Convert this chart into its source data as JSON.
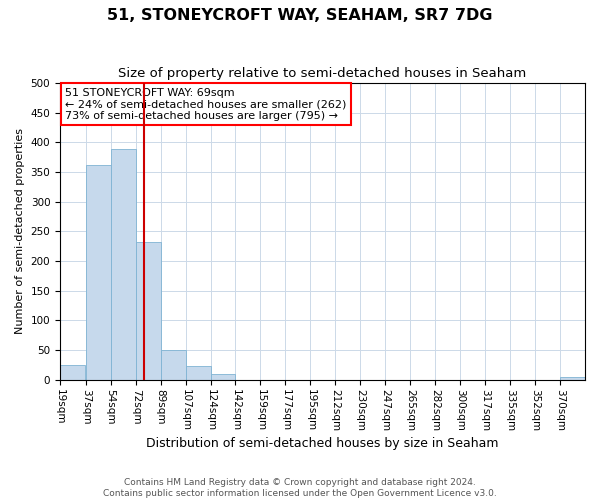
{
  "title": "51, STONEYCROFT WAY, SEAHAM, SR7 7DG",
  "subtitle": "Size of property relative to semi-detached houses in Seaham",
  "xlabel": "Distribution of semi-detached houses by size in Seaham",
  "ylabel": "Number of semi-detached properties",
  "bin_labels": [
    "19sqm",
    "37sqm",
    "54sqm",
    "72sqm",
    "89sqm",
    "107sqm",
    "124sqm",
    "142sqm",
    "159sqm",
    "177sqm",
    "195sqm",
    "212sqm",
    "230sqm",
    "247sqm",
    "265sqm",
    "282sqm",
    "300sqm",
    "317sqm",
    "335sqm",
    "352sqm",
    "370sqm"
  ],
  "bin_left_edges": [
    10,
    28,
    45.5,
    63,
    80.5,
    98,
    115.5,
    133,
    150.5,
    168,
    185.5,
    203,
    220.5,
    238,
    255.5,
    273,
    290.5,
    308,
    325.5,
    343,
    360.5
  ],
  "bin_width": 17.5,
  "bin_counts": [
    25,
    362,
    388,
    232,
    50,
    23,
    9,
    0,
    0,
    0,
    0,
    0,
    0,
    0,
    0,
    0,
    0,
    0,
    0,
    0,
    4
  ],
  "bar_color": "#c6d9ec",
  "bar_edgecolor": "#7fb3d3",
  "vline_x": 69,
  "vline_color": "#cc0000",
  "annotation_line1": "51 STONEYCROFT WAY: 69sqm",
  "annotation_line2": "← 24% of semi-detached houses are smaller (262)",
  "annotation_line3": "73% of semi-detached houses are larger (795) →",
  "ylim": [
    0,
    500
  ],
  "xlim_left": 10,
  "xlim_right": 378,
  "yticks": [
    0,
    50,
    100,
    150,
    200,
    250,
    300,
    350,
    400,
    450,
    500
  ],
  "footer_line1": "Contains HM Land Registry data © Crown copyright and database right 2024.",
  "footer_line2": "Contains public sector information licensed under the Open Government Licence v3.0.",
  "background_color": "#ffffff",
  "grid_color": "#ccd9e8",
  "title_fontsize": 11.5,
  "subtitle_fontsize": 9.5,
  "xlabel_fontsize": 9,
  "ylabel_fontsize": 8,
  "tick_fontsize": 7.5,
  "annotation_fontsize": 8,
  "footer_fontsize": 6.5
}
